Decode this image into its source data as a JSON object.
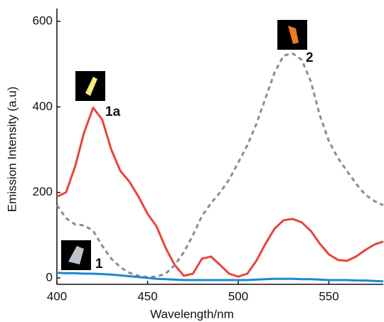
{
  "chart_data": {
    "type": "line",
    "x_label": "Wavelength/nm",
    "y_label": "Emission Intensity (a.u)",
    "x": [
      400,
      405,
      410,
      415,
      420,
      425,
      430,
      435,
      440,
      445,
      450,
      455,
      460,
      465,
      470,
      475,
      480,
      485,
      490,
      495,
      500,
      505,
      510,
      515,
      520,
      525,
      530,
      535,
      540,
      545,
      550,
      555,
      560,
      565,
      570,
      575,
      580
    ],
    "series": [
      {
        "name": "1a",
        "color": "#e8453c",
        "dash": false,
        "values": [
          190,
          200,
          260,
          340,
          398,
          370,
          300,
          250,
          225,
          190,
          150,
          120,
          70,
          30,
          5,
          10,
          45,
          50,
          30,
          10,
          3,
          10,
          40,
          80,
          115,
          135,
          138,
          130,
          110,
          80,
          55,
          42,
          40,
          50,
          65,
          78,
          85
        ]
      },
      {
        "name": "2",
        "color": "#8c8c8c",
        "dash": true,
        "values": [
          170,
          140,
          125,
          123,
          110,
          75,
          45,
          25,
          12,
          5,
          2,
          3,
          10,
          30,
          60,
          100,
          145,
          175,
          200,
          230,
          270,
          310,
          360,
          420,
          480,
          520,
          525,
          510,
          460,
          380,
          320,
          280,
          250,
          220,
          195,
          180,
          170
        ]
      },
      {
        "name": "1",
        "color": "#1e88d0",
        "dash": false,
        "values": [
          12,
          11,
          11,
          10,
          10,
          9,
          8,
          6,
          4,
          2,
          0,
          -2,
          -3,
          -4,
          -5,
          -5,
          -5,
          -5,
          -5,
          -5,
          -5,
          -5,
          -4,
          -3,
          -2,
          -2,
          -2,
          -3,
          -3,
          -4,
          -5,
          -5,
          -5,
          -6,
          -6,
          -7,
          -8
        ]
      }
    ],
    "xlim": [
      400,
      580
    ],
    "ylim": [
      -15,
      630
    ],
    "xticks": [
      400,
      450,
      500,
      550
    ],
    "yticks": [
      0,
      200,
      400,
      600
    ]
  }
}
